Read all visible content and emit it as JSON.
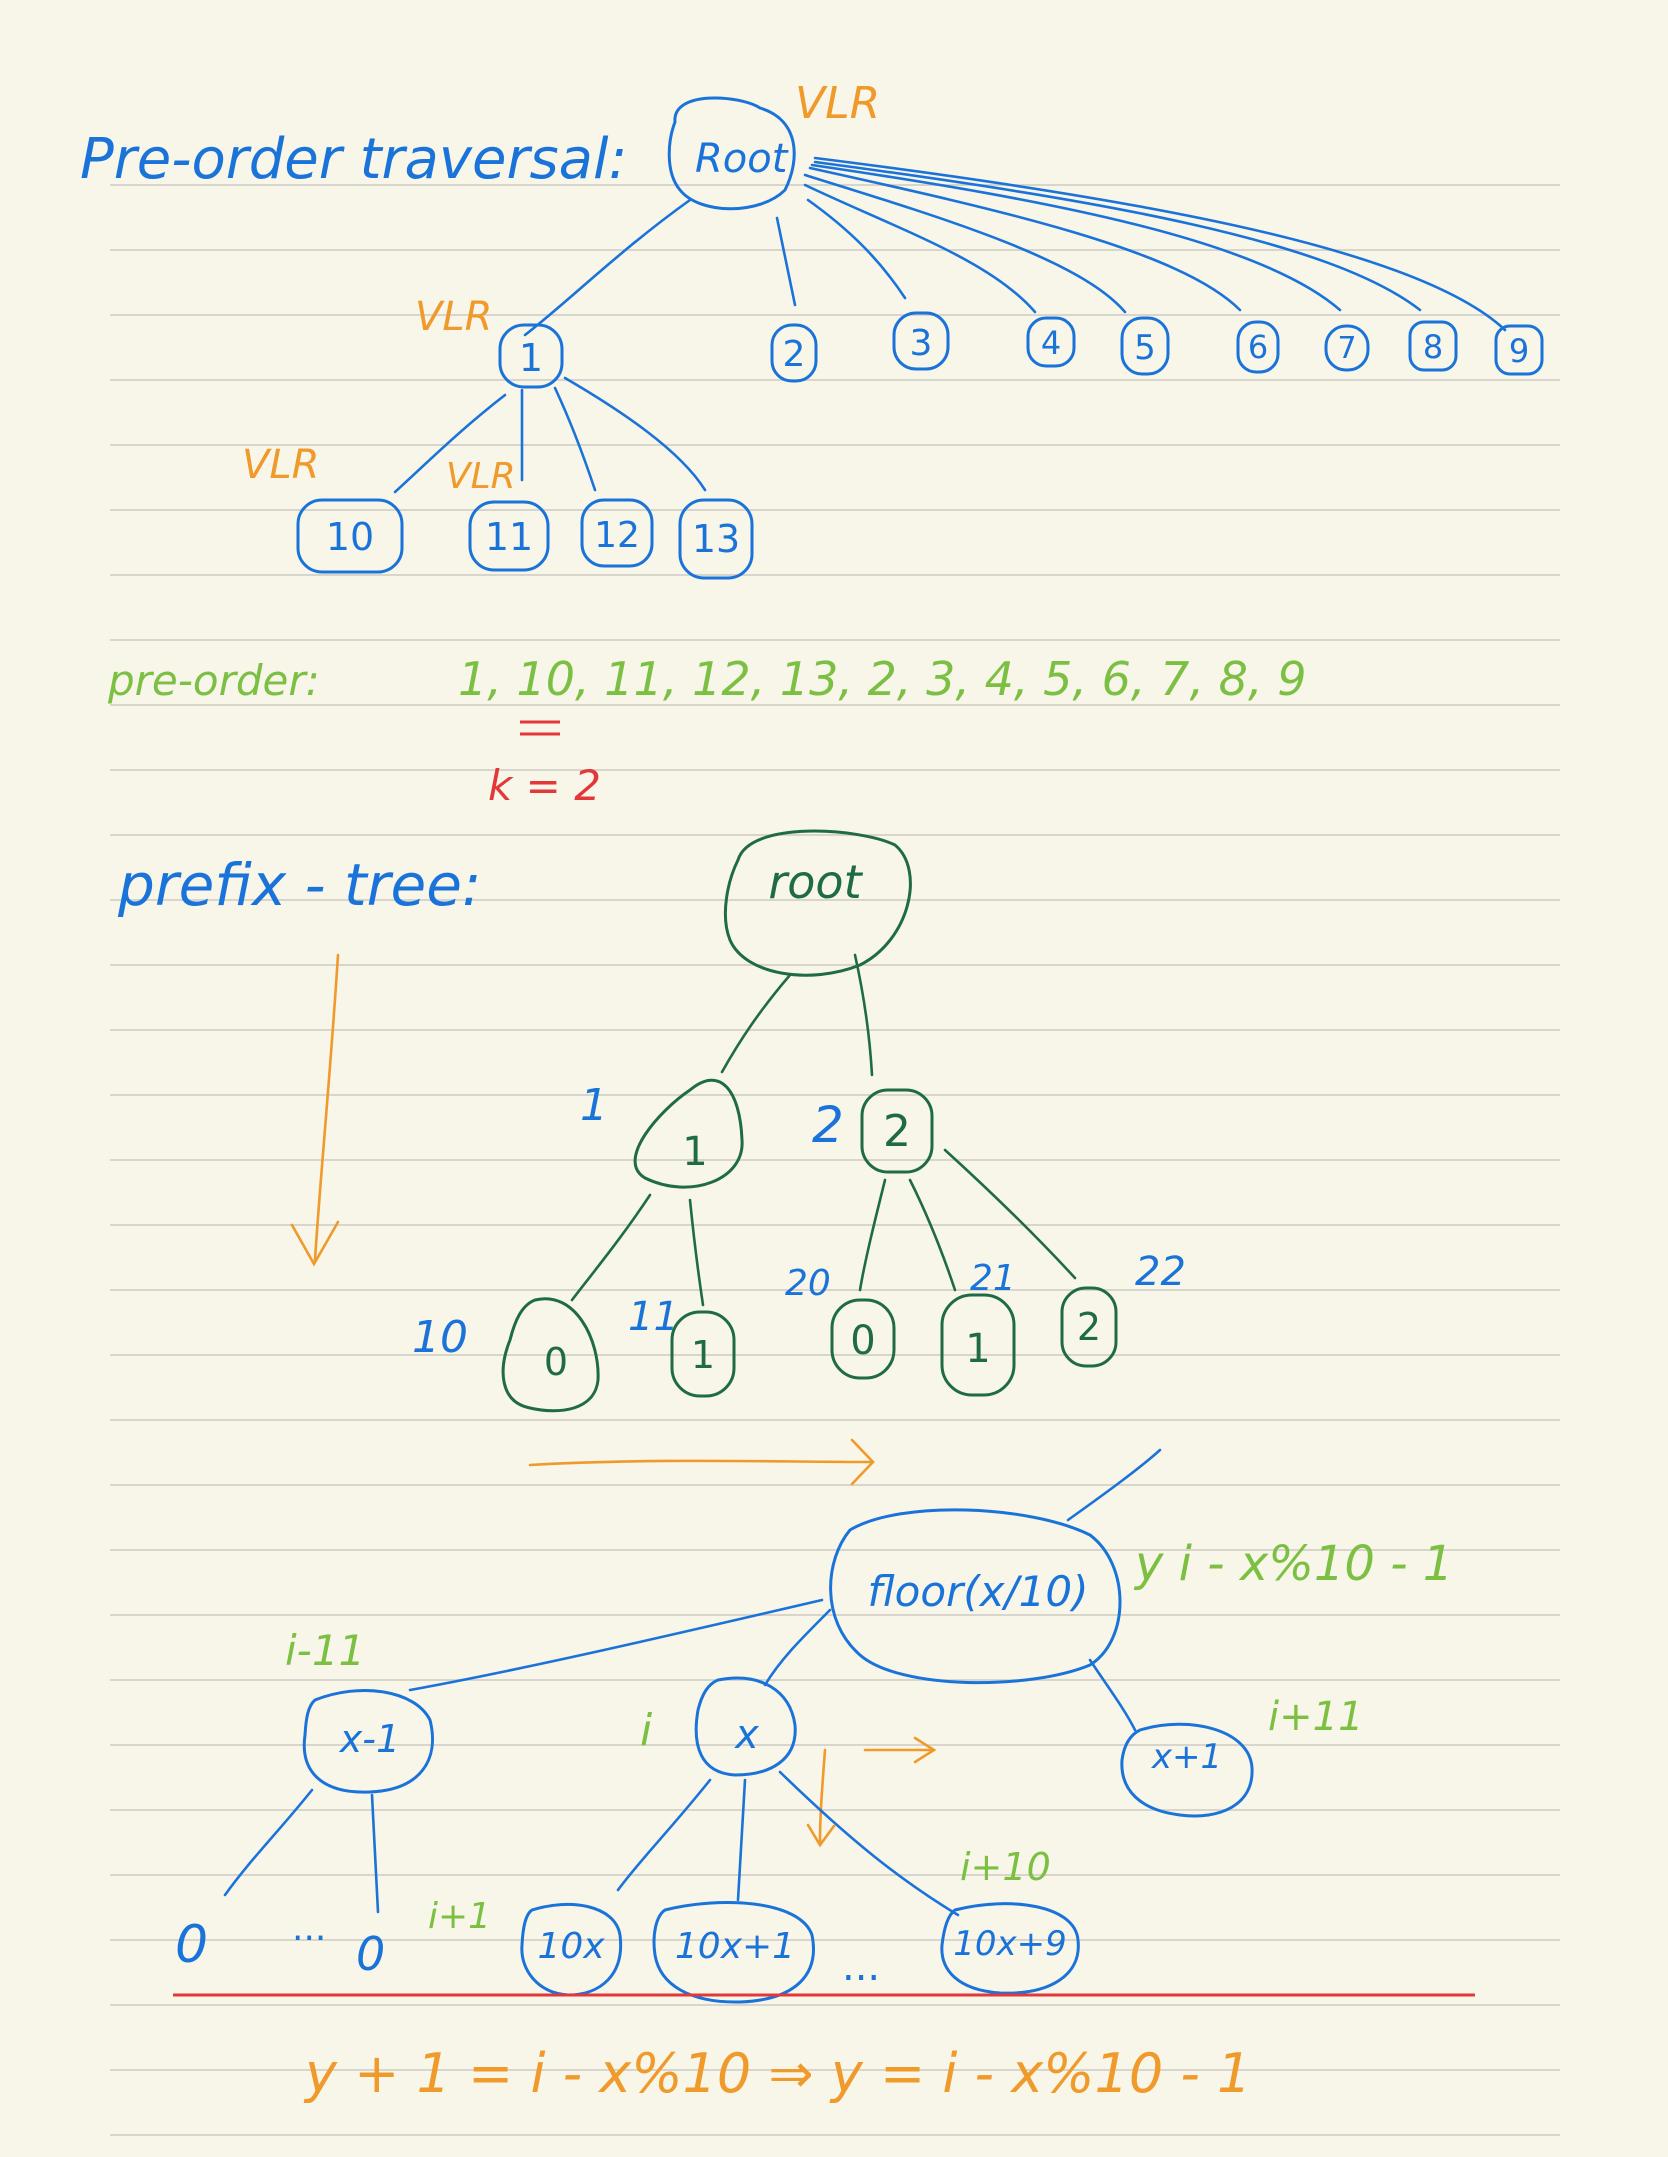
{
  "section1": {
    "title": "Pre-order traversal:",
    "order_label": "VLR",
    "root": "Root",
    "children": [
      "1",
      "2",
      "3",
      "4",
      "5",
      "6",
      "7",
      "8",
      "9"
    ],
    "grandchildren": [
      "10",
      "11",
      "12",
      "13"
    ]
  },
  "preorder": {
    "label": "pre-order:",
    "sequence": "1, 10, 11, 12, 13, 2, 3, 4, 5, 6, 7, 8, 9",
    "k_note": "k = 2"
  },
  "section2": {
    "title": "prefix - tree:",
    "root": "root",
    "level1": [
      {
        "node": "1",
        "label": "1"
      },
      {
        "node": "2",
        "label": "2"
      }
    ],
    "level2": [
      {
        "node": "0",
        "label": "10"
      },
      {
        "node": "1",
        "label": "11"
      },
      {
        "node": "0",
        "label": "20"
      },
      {
        "node": "1",
        "label": "21"
      },
      {
        "node": "2",
        "label": "22"
      }
    ]
  },
  "section3": {
    "parent": "floor(x/10)",
    "parent_note": "y  i - x%10 - 1",
    "nodes": [
      {
        "node": "x-1",
        "label": "i-11"
      },
      {
        "node": "x",
        "label": "i"
      },
      {
        "node": "x+1",
        "label": "i+11"
      }
    ],
    "left_children": [
      "0",
      "...",
      "0"
    ],
    "i_plus_1": "i+1",
    "children": [
      "10x",
      "10x+1",
      "...",
      "10x+9"
    ],
    "i_plus_10": "i+10"
  },
  "formula": "y + 1 = i -  x%10  ⇒ y = i - x%10 - 1",
  "colors": {
    "background": "#f8f5e9",
    "rule_line": "#d8d5cc",
    "blue": "#1a73d9",
    "orange": "#ef9a2a",
    "green": "#7bc043",
    "dark_green": "#1f6b46",
    "red": "#e2383a"
  }
}
